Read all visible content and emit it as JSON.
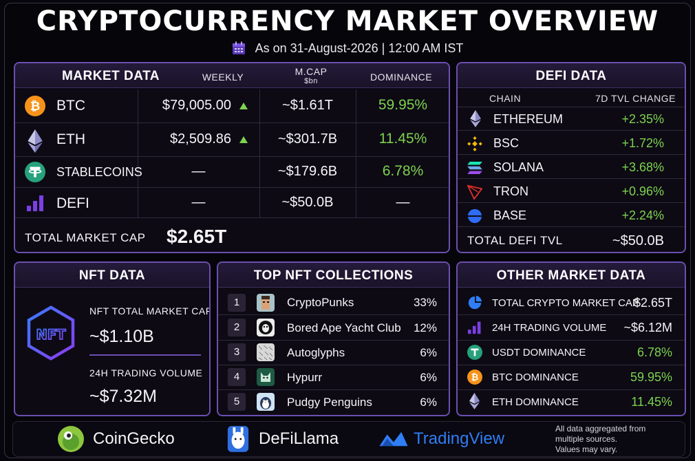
{
  "title": "CRYPTOCURRENCY MARKET OVERVIEW",
  "subtitle": "As on 31-August-2026 | 12:00 AM IST",
  "market": {
    "header": "MARKET DATA",
    "col_weekly": "WEEKLY",
    "col_mcap": "M.CAP",
    "col_mcap_unit": "$bn",
    "col_dominance": "DOMINANCE",
    "rows": [
      {
        "name": "BTC",
        "price": "$79,005.00",
        "mcap": "~$1.61T",
        "dominance": "59.95%"
      },
      {
        "name": "ETH",
        "price": "$2,509.86",
        "mcap": "~$301.7B",
        "dominance": "11.45%"
      },
      {
        "name": "STABLECOINS",
        "price": "—",
        "mcap": "~$179.6B",
        "dominance": "6.78%"
      },
      {
        "name": "DEFI",
        "price": "—",
        "mcap": "~$50.0B",
        "dominance": "—"
      }
    ],
    "total_label": "TOTAL MARKET CAP",
    "total_value": "$2.65T"
  },
  "defi": {
    "header": "DEFI DATA",
    "col_chain": "CHAIN",
    "col_change": "7D TVL CHANGE",
    "rows": [
      {
        "chain": "ETHEREUM",
        "change": "+2.35%"
      },
      {
        "chain": "BSC",
        "change": "+1.72%"
      },
      {
        "chain": "SOLANA",
        "change": "+3.68%"
      },
      {
        "chain": "TRON",
        "change": "+0.96%"
      },
      {
        "chain": "BASE",
        "change": "+2.24%"
      }
    ],
    "total_label": "TOTAL DEFI TVL",
    "total_value": "~$50.0B"
  },
  "nft": {
    "header": "NFT DATA",
    "mcap_label": "NFT TOTAL MARKET CAP",
    "mcap_value": "~$1.10B",
    "volume_label": "24H TRADING VOLUME",
    "volume_value": "~$7.32M",
    "logo_text": "NFT"
  },
  "collections": {
    "header": "TOP NFT COLLECTIONS",
    "rows": [
      {
        "rank": "1",
        "name": "CryptoPunks",
        "share": "33%"
      },
      {
        "rank": "2",
        "name": "Bored Ape Yacht Club",
        "share": "12%"
      },
      {
        "rank": "3",
        "name": "Autoglyphs",
        "share": "6%"
      },
      {
        "rank": "4",
        "name": "Hypurr",
        "share": "6%"
      },
      {
        "rank": "5",
        "name": "Pudgy Penguins",
        "share": "6%"
      }
    ]
  },
  "other": {
    "header": "OTHER MARKET DATA",
    "rows": [
      {
        "label": "TOTAL CRYPTO MARKET CAP",
        "value": "$2.65T"
      },
      {
        "label": "24H TRADING VOLUME",
        "value": "~$6.12M"
      },
      {
        "label": "USDT DOMINANCE",
        "value": "6.78%"
      },
      {
        "label": "BTC DOMINANCE",
        "value": "59.95%"
      },
      {
        "label": "ETH DOMINANCE",
        "value": "11.45%"
      }
    ]
  },
  "footer": {
    "sources": [
      "CoinGecko",
      "DeFiLlama",
      "TradingView"
    ],
    "note_lines": [
      "All data aggregated from",
      "multiple sources.",
      "Values may vary."
    ]
  },
  "colors": {
    "accent": "#6b4fb0",
    "positive": "#7dd34f",
    "btc": "#f7931a",
    "tether": "#26a17b",
    "defi_bars": "#7b3fe4",
    "binance": "#f0b90b",
    "tron": "#e0302a",
    "base": "#2f6cf5",
    "tradingview": "#2f7ef5"
  },
  "icons": {
    "calendar": "calendar-icon",
    "btc": "bitcoin-icon",
    "eth": "ethereum-icon",
    "stable": "tether-icon",
    "defi": "bar-chart-icon",
    "bsc": "binance-icon",
    "solana": "solana-icon",
    "tron": "tron-icon",
    "base": "base-icon",
    "pie": "pie-chart-icon"
  }
}
